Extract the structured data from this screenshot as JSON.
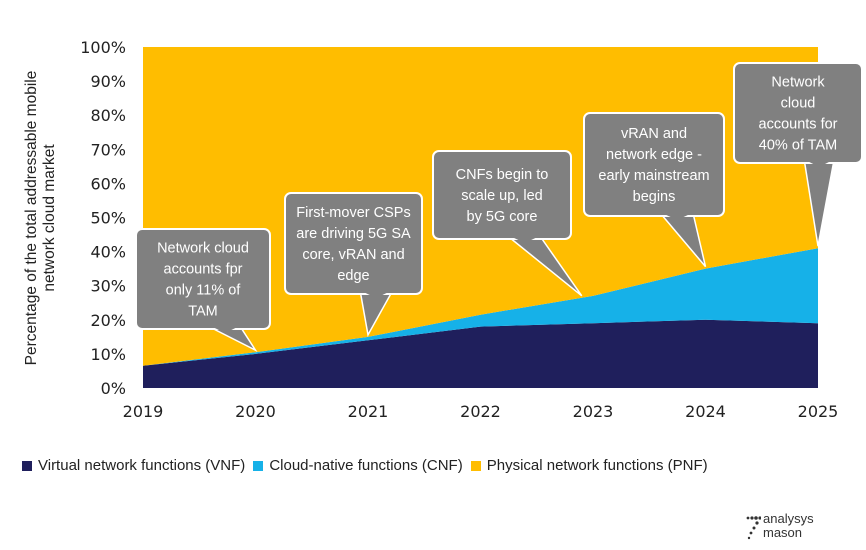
{
  "chart_data": {
    "type": "area",
    "stacked": true,
    "x": [
      "2019",
      "2020",
      "2021",
      "2022",
      "2023",
      "2024",
      "2025"
    ],
    "series": [
      {
        "name": "Virtual network functions (VNF)",
        "color": "#1f1f5c",
        "values": [
          6.5,
          10,
          14,
          18,
          19,
          20,
          19
        ]
      },
      {
        "name": "Cloud-native functions (CNF)",
        "color": "#16b1e8",
        "values": [
          0,
          0.5,
          1,
          3.5,
          8,
          15,
          22
        ]
      },
      {
        "name": "Physical network functions (PNF)",
        "color": "#ffbd00",
        "values": [
          93.5,
          89.5,
          85,
          78.5,
          73,
          65,
          59
        ]
      }
    ],
    "ylabel": "Percentage of the total addressable mobile network cloud market",
    "xlabel": "",
    "ylim": [
      0,
      100
    ],
    "yticks": [
      "0%",
      "10%",
      "20%",
      "30%",
      "40%",
      "50%",
      "60%",
      "70%",
      "80%",
      "90%",
      "100%"
    ],
    "grid": false,
    "legend_position": "bottom",
    "annotations": [
      {
        "lines": [
          "Network cloud",
          "accounts fpr",
          "only 11% of",
          "TAM"
        ],
        "target_year": 2020
      },
      {
        "lines": [
          "First-mover CSPs",
          "are driving 5G SA",
          "core, vRAN and",
          "edge"
        ],
        "target_year": 2021
      },
      {
        "lines": [
          "CNFs begin to",
          "scale up, led",
          "by 5G core"
        ],
        "target_year": 2022.9
      },
      {
        "lines": [
          "vRAN and",
          "network edge -",
          "early mainstream",
          "begins"
        ],
        "target_year": 2024
      },
      {
        "lines": [
          "Network",
          "cloud",
          "accounts for",
          "40% of TAM"
        ],
        "target_year": 2025
      }
    ]
  },
  "logo": {
    "line1": "analysys",
    "line2": "mason"
  }
}
